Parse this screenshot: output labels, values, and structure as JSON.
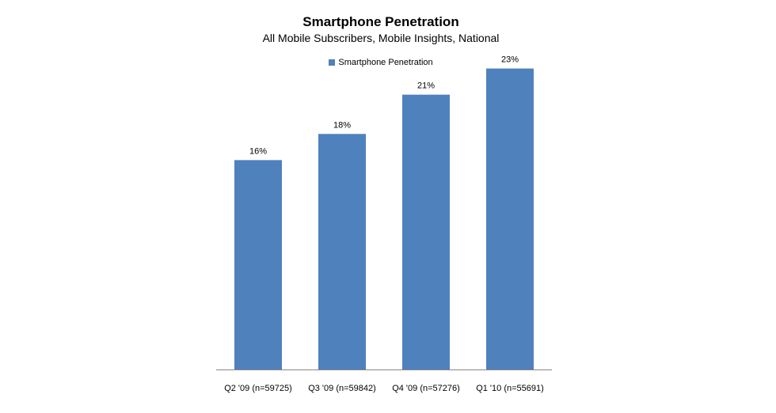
{
  "chart_data": {
    "type": "bar",
    "title": "Smartphone Penetration",
    "subtitle": "All Mobile Subscribers, Mobile Insights, National",
    "categories": [
      "Q2 '09 (n=59725)",
      "Q3 '09 (n=59842)",
      "Q4 '09 (n=57276)",
      "Q1 '10 (n=55691)"
    ],
    "series": [
      {
        "name": "Smartphone Penetration",
        "values": [
          16,
          18,
          21,
          23
        ],
        "labels": [
          "16%",
          "18%",
          "21%",
          "23%"
        ],
        "color": "#4F81BD"
      }
    ],
    "xlabel": "",
    "ylabel": "",
    "ylim": [
      0,
      25
    ],
    "grid": false,
    "legend": "top-center"
  }
}
